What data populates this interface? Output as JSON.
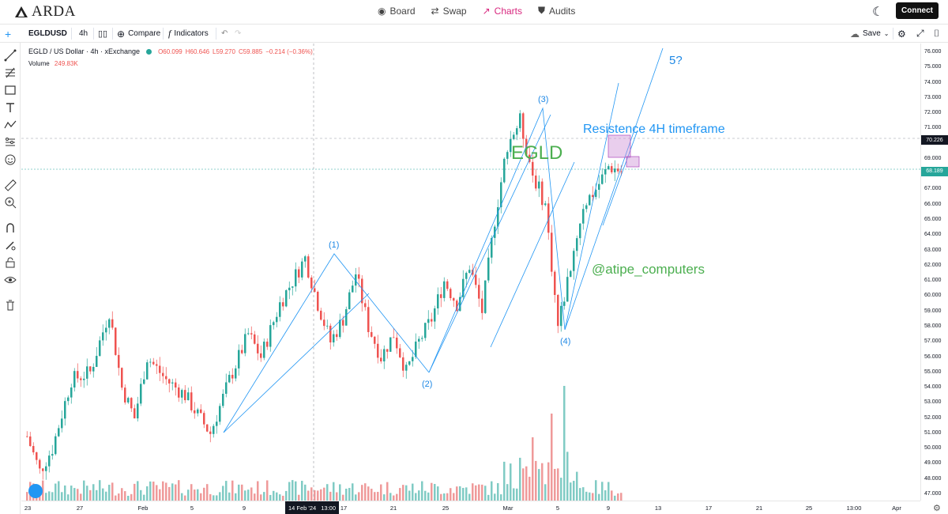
{
  "brand": {
    "name": "ARDA"
  },
  "nav": {
    "items": [
      {
        "label": "Board",
        "icon": "eye-icon",
        "active": false
      },
      {
        "label": "Swap",
        "icon": "swap-icon",
        "active": false
      },
      {
        "label": "Charts",
        "icon": "chart-trend-icon",
        "active": true
      },
      {
        "label": "Audits",
        "icon": "shield-icon",
        "active": false
      }
    ],
    "connect_label": "Connect"
  },
  "toolbar": {
    "symbol": "EGLDUSD",
    "interval": "4h",
    "compare_label": "Compare",
    "indicators_label": "Indicators",
    "save_label": "Save"
  },
  "legend": {
    "title": "EGLD / US Dollar · 4h · xExchange",
    "open": "O60.099",
    "high": "H60.646",
    "low": "L59.270",
    "close": "C59.885",
    "change": "−0.214 (−0.36%)",
    "volume_label": "Volume",
    "volume_value": "249.83K"
  },
  "price_labels": {
    "crosshair": "70.226",
    "last": "68.189"
  },
  "crosshair_date": "14 Feb '24",
  "crosshair_time": "13:00",
  "annotations": {
    "wave1": "(1)",
    "wave2": "(2)",
    "wave3": "(3)",
    "wave4": "(4)",
    "wave5": "5?",
    "resistance": "Resistence 4H timeframe",
    "symbol_big": "EGLD",
    "handle": "@atipe_computers"
  },
  "colors": {
    "up": "#26a69a",
    "down": "#ef5350",
    "drawing": "#2196f3",
    "annotation_green": "#4caf50",
    "accent": "#d8287f",
    "zone": "#ce93d8"
  },
  "chart_data": {
    "type": "candlestick",
    "symbol": "EGLD / US Dollar",
    "interval": "4h",
    "ylim": [
      47,
      76
    ],
    "y_ticks": [
      "76.000",
      "75.000",
      "74.000",
      "73.000",
      "72.000",
      "71.000",
      "70.000",
      "69.000",
      "68.000",
      "67.000",
      "66.000",
      "65.000",
      "64.000",
      "63.000",
      "62.000",
      "61.000",
      "60.000",
      "59.000",
      "58.000",
      "57.000",
      "56.000",
      "55.000",
      "54.000",
      "53.000",
      "52.000",
      "51.000",
      "50.000",
      "49.000",
      "48.000",
      "47.000"
    ],
    "x_ticks": [
      "23",
      "27",
      "Feb",
      "5",
      "9",
      "17",
      "21",
      "25",
      "Mar",
      "5",
      "9",
      "13",
      "17",
      "21",
      "25",
      "13:00",
      "Apr"
    ],
    "path_points": [
      {
        "t": 0,
        "p": 50.8
      },
      {
        "t": 4,
        "p": 48.5
      },
      {
        "t": 8,
        "p": 50.0
      },
      {
        "t": 14,
        "p": 54.5
      },
      {
        "t": 20,
        "p": 55.0
      },
      {
        "t": 26,
        "p": 59.0
      },
      {
        "t": 30,
        "p": 54.0
      },
      {
        "t": 34,
        "p": 52.0
      },
      {
        "t": 38,
        "p": 56.0
      },
      {
        "t": 44,
        "p": 54.5
      },
      {
        "t": 50,
        "p": 53.5
      },
      {
        "t": 54,
        "p": 52.2
      },
      {
        "t": 58,
        "p": 51.0
      },
      {
        "t": 64,
        "p": 54.5
      },
      {
        "t": 70,
        "p": 57.5
      },
      {
        "t": 74,
        "p": 56.0
      },
      {
        "t": 80,
        "p": 59.5
      },
      {
        "t": 84,
        "p": 61.0
      },
      {
        "t": 88,
        "p": 62.5
      },
      {
        "t": 92,
        "p": 59.5
      },
      {
        "t": 96,
        "p": 57.0
      },
      {
        "t": 100,
        "p": 58.5
      },
      {
        "t": 104,
        "p": 61.5
      },
      {
        "t": 108,
        "p": 58.0
      },
      {
        "t": 112,
        "p": 56.0
      },
      {
        "t": 116,
        "p": 57.5
      },
      {
        "t": 120,
        "p": 55.0
      },
      {
        "t": 124,
        "p": 57.0
      },
      {
        "t": 128,
        "p": 58.5
      },
      {
        "t": 132,
        "p": 61.0
      },
      {
        "t": 136,
        "p": 59.5
      },
      {
        "t": 140,
        "p": 62.0
      },
      {
        "t": 144,
        "p": 59.0
      },
      {
        "t": 148,
        "p": 65.0
      },
      {
        "t": 152,
        "p": 70.0
      },
      {
        "t": 156,
        "p": 71.5
      },
      {
        "t": 160,
        "p": 68.0
      },
      {
        "t": 164,
        "p": 66.0
      },
      {
        "t": 168,
        "p": 58.0
      },
      {
        "t": 172,
        "p": 62.0
      },
      {
        "t": 176,
        "p": 66.0
      },
      {
        "t": 180,
        "p": 67.0
      },
      {
        "t": 184,
        "p": 68.5
      },
      {
        "t": 188,
        "p": 68.2
      }
    ],
    "volume_label": "Volume 249.83K"
  }
}
